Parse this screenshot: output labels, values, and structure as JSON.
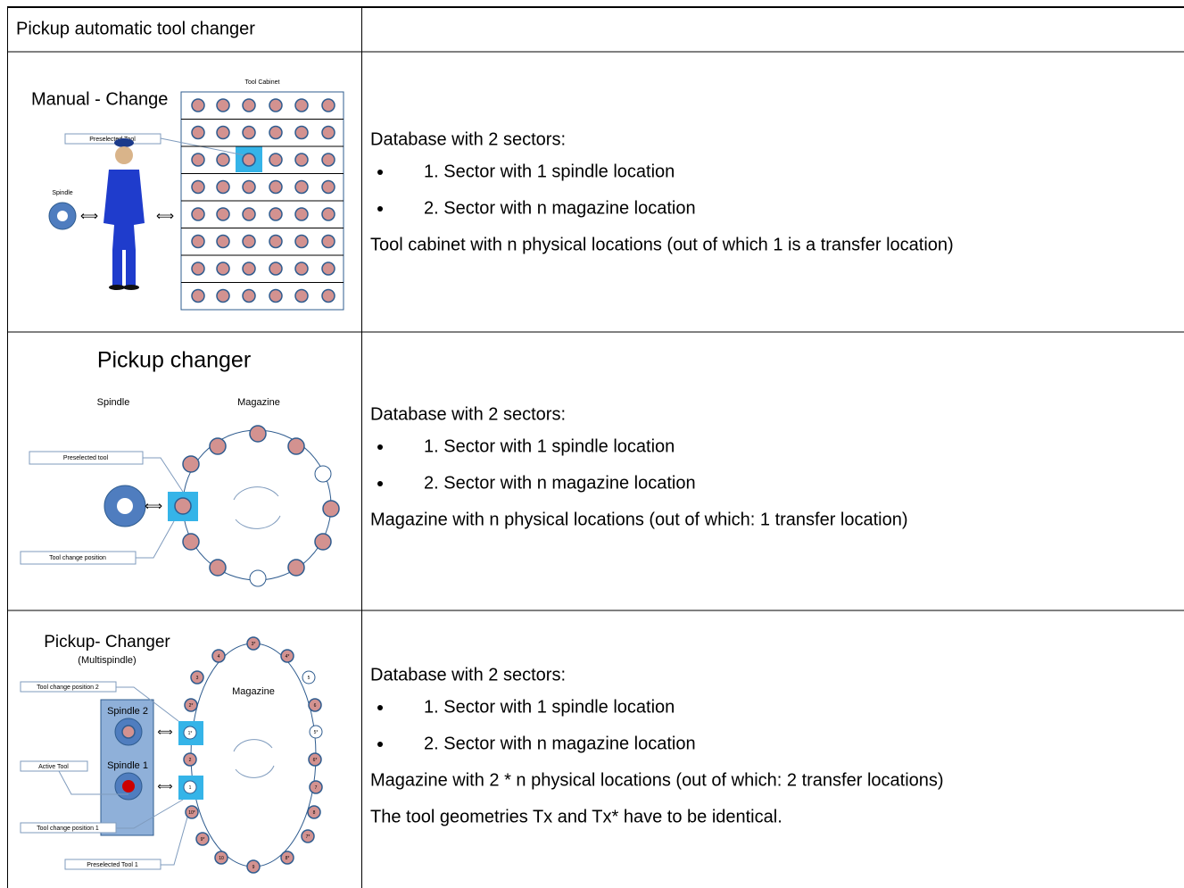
{
  "header": {
    "title": "Pickup automatic tool changer"
  },
  "rows": [
    {
      "figure": {
        "title": "Manual - Change",
        "cabinet": "Tool Cabinet",
        "preselected": "Preselected Tool",
        "spindle": "Spindle"
      },
      "text": {
        "intro": "Database with 2 sectors:",
        "bullets": [
          "1. Sector with 1 spindle location",
          "2. Sector with n magazine location"
        ],
        "notes": [
          "Tool cabinet with n physical locations (out of which 1 is a transfer location)"
        ]
      }
    },
    {
      "figure": {
        "title": "Pickup changer",
        "spindle": "Spindle",
        "magazine": "Magazine",
        "preselected": "Preselected tool",
        "change_position": "Tool change position"
      },
      "text": {
        "intro": "Database with 2 sectors:",
        "bullets": [
          "1. Sector with 1 spindle location",
          "2. Sector with n magazine location"
        ],
        "notes": [
          "Magazine with n physical locations (out of which: 1 transfer location)"
        ]
      }
    },
    {
      "figure": {
        "title": "Pickup- Changer",
        "subtitle": "(Multispindle)",
        "magazine": "Magazine",
        "change_position_2": "Tool change position 2",
        "spindle_2": "Spindle 2",
        "active": "Active Tool",
        "spindle_1": "Spindle 1",
        "change_position_1": "Tool change position 1",
        "preselected": "Preselected Tool 1",
        "tools": [
          "4",
          "3*",
          "4*",
          "3",
          "5",
          "2*",
          "6",
          "1*",
          "5*",
          "2",
          "6*",
          "1",
          "7",
          "10*",
          "8",
          "9*",
          "7*",
          "10",
          "8*",
          "9"
        ]
      },
      "text": {
        "intro": "Database with 2 sectors:",
        "bullets": [
          "1. Sector with 1 spindle location",
          "2. Sector with n magazine location"
        ],
        "notes": [
          "Magazine with 2 * n physical locations (out of which: 2 transfer locations)",
          "The tool geometries Tx and Tx* have to be identical."
        ]
      }
    }
  ]
}
